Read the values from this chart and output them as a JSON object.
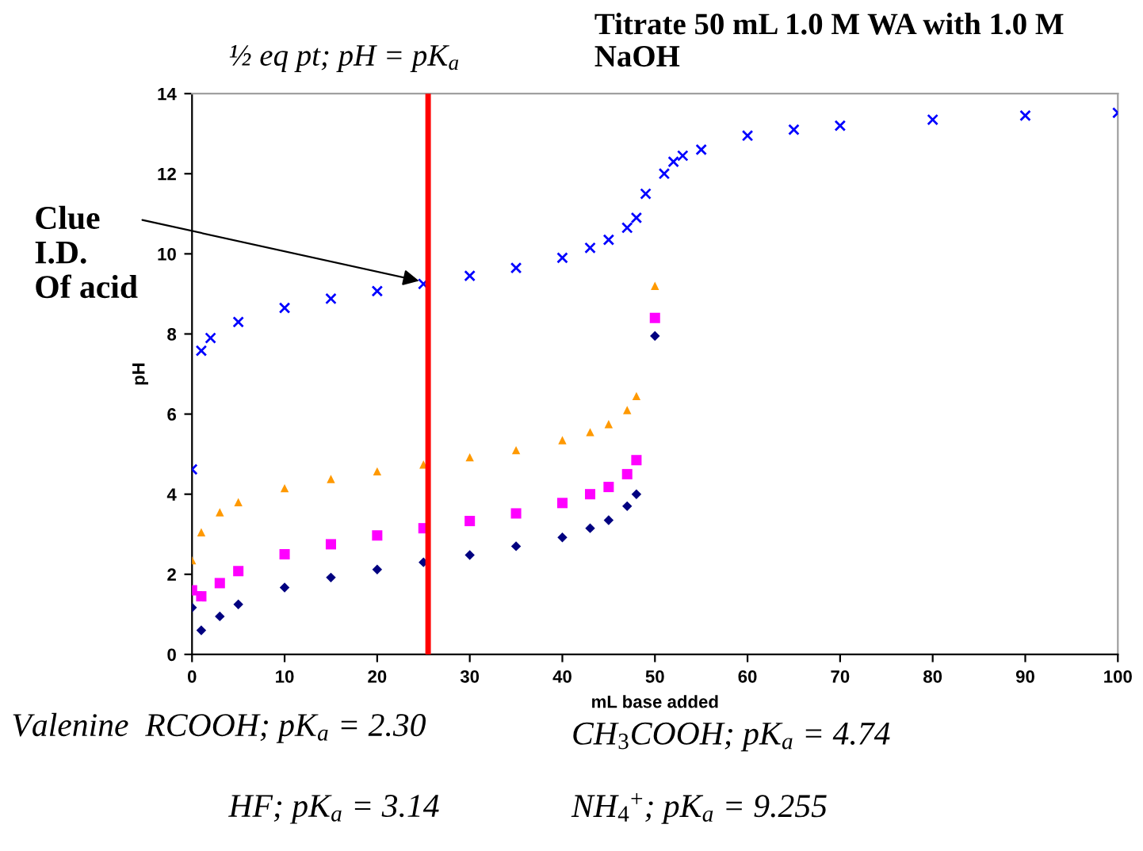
{
  "chart_data": {
    "type": "scatter",
    "title": "Titrate 50 mL 1.0 M WA with 1.0 M NaOH",
    "xlabel": "mL base added",
    "ylabel": "pH",
    "xlim": [
      0,
      100
    ],
    "xticks": [
      0,
      10,
      20,
      30,
      40,
      50,
      60,
      70,
      80,
      90,
      100
    ],
    "ylim": [
      0,
      14
    ],
    "yticks": [
      0,
      2,
      4,
      6,
      8,
      10,
      12,
      14
    ],
    "grid": false,
    "series": [
      {
        "color": "#000080",
        "marker": "diamond",
        "x": [
          0,
          1,
          3,
          5,
          10,
          15,
          20,
          25,
          30,
          35,
          40,
          43,
          45,
          47,
          48,
          50
        ],
        "values": [
          1.17,
          0.6,
          0.95,
          1.25,
          1.67,
          1.92,
          2.12,
          2.3,
          2.48,
          2.7,
          2.92,
          3.15,
          3.35,
          3.7,
          4.0,
          7.95
        ]
      },
      {
        "color": "#ff00ff",
        "marker": "square",
        "x": [
          0,
          1,
          3,
          5,
          10,
          15,
          20,
          25,
          30,
          35,
          40,
          43,
          45,
          47,
          48,
          50
        ],
        "values": [
          1.6,
          1.45,
          1.78,
          2.08,
          2.5,
          2.75,
          2.97,
          3.15,
          3.33,
          3.52,
          3.78,
          4.0,
          4.18,
          4.5,
          4.85,
          8.4
        ]
      },
      {
        "color": "#ff9900",
        "marker": "triangle",
        "x": [
          0,
          1,
          3,
          5,
          10,
          15,
          20,
          25,
          30,
          35,
          40,
          43,
          45,
          47,
          48,
          50
        ],
        "values": [
          2.35,
          3.05,
          3.55,
          3.8,
          4.15,
          4.38,
          4.57,
          4.74,
          4.92,
          5.1,
          5.35,
          5.55,
          5.75,
          6.1,
          6.45,
          9.2
        ]
      },
      {
        "color": "#0000ff",
        "marker": "cross",
        "x": [
          0,
          1,
          2,
          5,
          10,
          15,
          20,
          25,
          30,
          35,
          40,
          43,
          45,
          47,
          48,
          49,
          51,
          52,
          53,
          55,
          60,
          65,
          70,
          80,
          90,
          100
        ],
        "values": [
          4.62,
          7.58,
          7.9,
          8.3,
          8.65,
          8.88,
          9.07,
          9.25,
          9.45,
          9.65,
          9.9,
          10.15,
          10.35,
          10.65,
          10.9,
          11.5,
          12.0,
          12.3,
          12.45,
          12.6,
          12.95,
          13.1,
          13.2,
          13.35,
          13.45,
          13.52
        ]
      }
    ],
    "ref_lines": [
      {
        "axis": "x",
        "value": 25.5,
        "label": "½ eq pt; pH = pK$_{a}$",
        "color": "#ff0000"
      }
    ],
    "annotations": [
      {
        "text": "Clue\nI.D.\nOf acid",
        "x": 25,
        "y": 9.3
      },
      "Valenine  RCOOH; pK$_{a}$ = 2.30",
      "HF; pK$_{a}$ = 3.14",
      "CH$_{3}$COOH; pK$_{a}$ = 4.74",
      "NH$_{4}$$^{+}$; pK$_{a}$ = 9.255"
    ]
  }
}
